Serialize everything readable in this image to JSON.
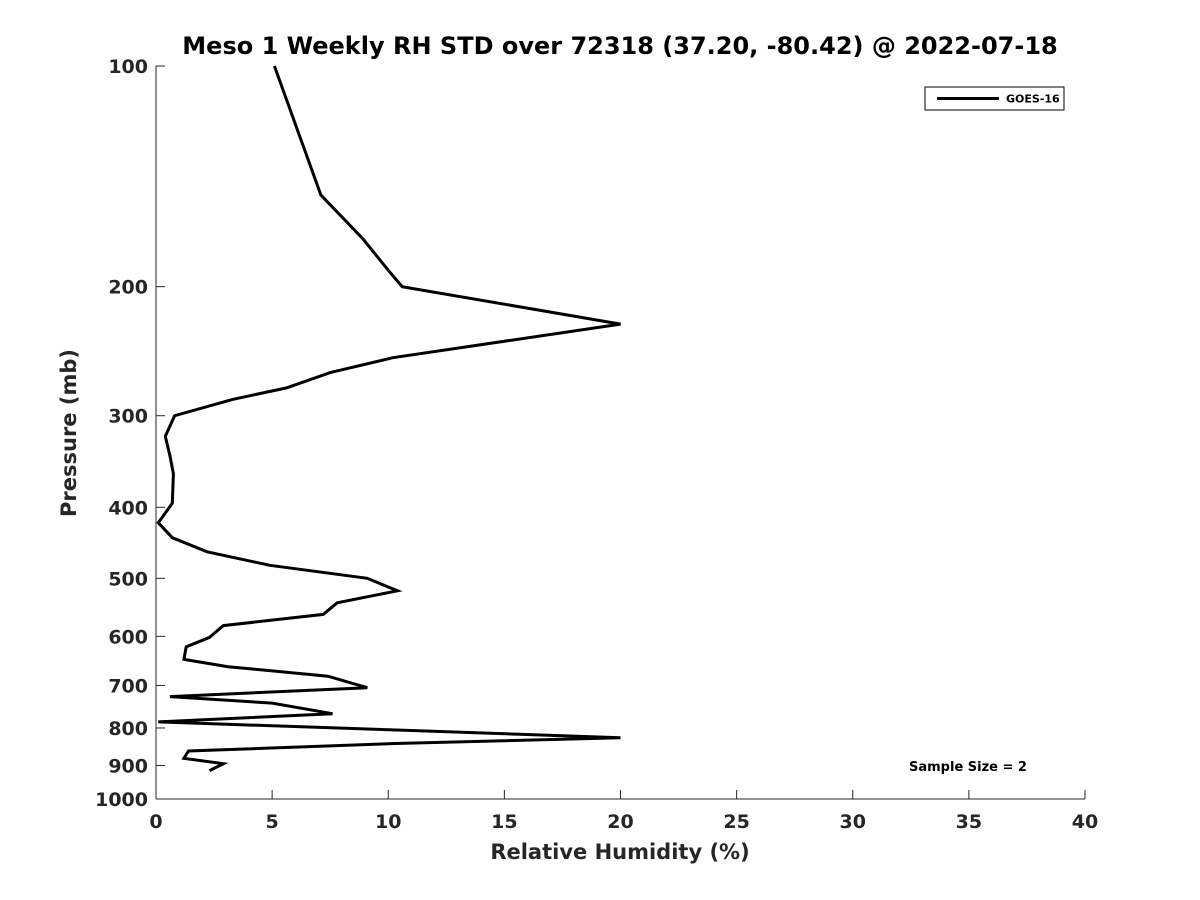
{
  "chart_data": {
    "type": "line",
    "title": "Meso 1 Weekly RH STD over 72318 (37.20, -80.42) @ 2022-07-18",
    "xlabel": "Relative Humidity (%)",
    "ylabel": "Pressure (mb)",
    "xlim": [
      0,
      40
    ],
    "ylim": [
      100,
      1000
    ],
    "yscale": "log",
    "y_reversed": true,
    "grid": false,
    "legend_position": "top-right",
    "x_ticks": [
      0,
      5,
      10,
      15,
      20,
      25,
      30,
      35,
      40
    ],
    "y_ticks": [
      100,
      200,
      300,
      400,
      500,
      600,
      700,
      800,
      900,
      1000
    ],
    "series": [
      {
        "name": "GOES-16",
        "color": "#000000",
        "x": [
          5.1,
          7.1,
          8.9,
          10.0,
          10.6,
          20.0,
          10.2,
          7.5,
          5.6,
          3.3,
          0.8,
          0.4,
          0.6,
          0.75,
          0.7,
          0.1,
          0.7,
          2.2,
          4.9,
          9.1,
          10.4,
          7.8,
          7.2,
          2.9,
          2.3,
          1.3,
          1.2,
          3.1,
          7.4,
          9.1,
          0.6,
          5.0,
          7.6,
          0.1,
          10.2,
          20.0,
          10.3,
          1.4,
          1.2,
          2.9,
          2.3
        ],
        "y": [
          100,
          150,
          172,
          190,
          200,
          225,
          250,
          262,
          275,
          285,
          300,
          320,
          340,
          360,
          395,
          420,
          440,
          460,
          480,
          500,
          520,
          540,
          560,
          580,
          602,
          620,
          645,
          660,
          680,
          705,
          725,
          740,
          765,
          785,
          805,
          825,
          840,
          860,
          880,
          895,
          915
        ]
      }
    ],
    "annotation": "Sample Size = 2"
  }
}
